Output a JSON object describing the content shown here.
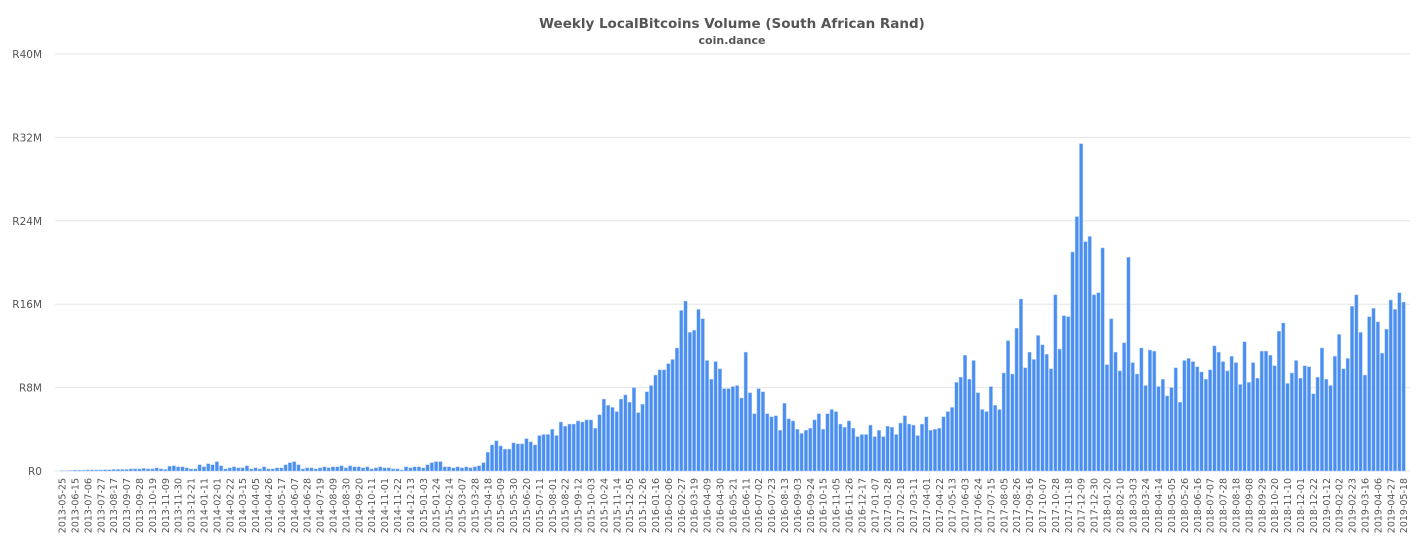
{
  "chart_data": {
    "type": "bar",
    "title": "Weekly LocalBitcoins Volume (South African Rand)",
    "subtitle": "coin.dance",
    "xlabel": "",
    "ylabel": "",
    "ylim": [
      0,
      40000000
    ],
    "yticks": [
      0,
      8000000,
      16000000,
      24000000,
      32000000,
      40000000
    ],
    "ytick_labels": [
      "R0",
      "R8M",
      "R16M",
      "R24M",
      "R32M",
      "R40M"
    ],
    "grid": true,
    "bar_color": "#4a8ff0",
    "value_unit": "millions of ZAR",
    "categories": [
      "2013-05-25",
      "2013-06-01",
      "2013-06-08",
      "2013-06-15",
      "2013-06-22",
      "2013-06-29",
      "2013-07-06",
      "2013-07-13",
      "2013-07-20",
      "2013-07-27",
      "2013-08-03",
      "2013-08-10",
      "2013-08-17",
      "2013-08-24",
      "2013-08-31",
      "2013-09-07",
      "2013-09-14",
      "2013-09-21",
      "2013-09-28",
      "2013-10-05",
      "2013-10-12",
      "2013-10-19",
      "2013-10-26",
      "2013-11-02",
      "2013-11-09",
      "2013-11-16",
      "2013-11-23",
      "2013-11-30",
      "2013-12-07",
      "2013-12-14",
      "2013-12-21",
      "2013-12-28",
      "2014-01-04",
      "2014-01-11",
      "2014-01-18",
      "2014-01-25",
      "2014-02-01",
      "2014-02-08",
      "2014-02-15",
      "2014-02-22",
      "2014-03-01",
      "2014-03-08",
      "2014-03-15",
      "2014-03-22",
      "2014-03-29",
      "2014-04-05",
      "2014-04-12",
      "2014-04-19",
      "2014-04-26",
      "2014-05-03",
      "2014-05-10",
      "2014-05-17",
      "2014-05-24",
      "2014-05-31",
      "2014-06-07",
      "2014-06-14",
      "2014-06-21",
      "2014-06-28",
      "2014-07-05",
      "2014-07-12",
      "2014-07-19",
      "2014-07-26",
      "2014-08-02",
      "2014-08-09",
      "2014-08-16",
      "2014-08-23",
      "2014-08-30",
      "2014-09-06",
      "2014-09-13",
      "2014-09-20",
      "2014-09-27",
      "2014-10-04",
      "2014-10-11",
      "2014-10-18",
      "2014-10-25",
      "2014-11-01",
      "2014-11-08",
      "2014-11-15",
      "2014-11-22",
      "2014-11-29",
      "2014-12-06",
      "2014-12-13",
      "2014-12-20",
      "2014-12-27",
      "2015-01-03",
      "2015-01-10",
      "2015-01-17",
      "2015-01-24",
      "2015-01-31",
      "2015-02-07",
      "2015-02-14",
      "2015-02-21",
      "2015-02-28",
      "2015-03-07",
      "2015-03-14",
      "2015-03-21",
      "2015-03-28",
      "2015-04-04",
      "2015-04-11",
      "2015-04-18",
      "2015-04-25",
      "2015-05-02",
      "2015-05-09",
      "2015-05-16",
      "2015-05-23",
      "2015-05-30",
      "2015-06-06",
      "2015-06-13",
      "2015-06-20",
      "2015-06-27",
      "2015-07-04",
      "2015-07-11",
      "2015-07-18",
      "2015-07-25",
      "2015-08-01",
      "2015-08-08",
      "2015-08-15",
      "2015-08-22",
      "2015-08-29",
      "2015-09-05",
      "2015-09-12",
      "2015-09-19",
      "2015-09-26",
      "2015-10-03",
      "2015-10-10",
      "2015-10-17",
      "2015-10-24",
      "2015-10-31",
      "2015-11-07",
      "2015-11-14",
      "2015-11-21",
      "2015-11-28",
      "2015-12-05",
      "2015-12-12",
      "2015-12-19",
      "2015-12-26",
      "2016-01-02",
      "2016-01-09",
      "2016-01-16",
      "2016-01-23",
      "2016-01-30",
      "2016-02-06",
      "2016-02-13",
      "2016-02-20",
      "2016-02-27",
      "2016-03-05",
      "2016-03-12",
      "2016-03-19",
      "2016-03-26",
      "2016-04-02",
      "2016-04-09",
      "2016-04-16",
      "2016-04-23",
      "2016-04-30",
      "2016-05-07",
      "2016-05-14",
      "2016-05-21",
      "2016-05-28",
      "2016-06-04",
      "2016-06-11",
      "2016-06-18",
      "2016-06-25",
      "2016-07-02",
      "2016-07-09",
      "2016-07-16",
      "2016-07-23",
      "2016-07-30",
      "2016-08-06",
      "2016-08-13",
      "2016-08-20",
      "2016-08-27",
      "2016-09-03",
      "2016-09-10",
      "2016-09-17",
      "2016-09-24",
      "2016-10-01",
      "2016-10-08",
      "2016-10-15",
      "2016-10-22",
      "2016-10-29",
      "2016-11-05",
      "2016-11-12",
      "2016-11-19",
      "2016-11-26",
      "2016-12-03",
      "2016-12-10",
      "2016-12-17",
      "2016-12-24",
      "2016-12-31",
      "2017-01-07",
      "2017-01-14",
      "2017-01-21",
      "2017-01-28",
      "2017-02-04",
      "2017-02-11",
      "2017-02-18",
      "2017-02-25",
      "2017-03-04",
      "2017-03-11",
      "2017-03-18",
      "2017-03-25",
      "2017-04-01",
      "2017-04-08",
      "2017-04-15",
      "2017-04-22",
      "2017-04-29",
      "2017-05-06",
      "2017-05-13",
      "2017-05-20",
      "2017-05-27",
      "2017-06-03",
      "2017-06-10",
      "2017-06-17",
      "2017-06-24",
      "2017-07-01",
      "2017-07-08",
      "2017-07-15",
      "2017-07-22",
      "2017-07-29",
      "2017-08-05",
      "2017-08-12",
      "2017-08-19",
      "2017-08-26",
      "2017-09-02",
      "2017-09-09",
      "2017-09-16",
      "2017-09-23",
      "2017-09-30",
      "2017-10-07",
      "2017-10-14",
      "2017-10-21",
      "2017-10-28",
      "2017-11-04",
      "2017-11-11",
      "2017-11-18",
      "2017-11-25",
      "2017-12-02",
      "2017-12-09",
      "2017-12-16",
      "2017-12-23",
      "2017-12-30",
      "2018-01-06",
      "2018-01-13",
      "2018-01-20",
      "2018-01-27",
      "2018-02-03",
      "2018-02-10",
      "2018-02-17",
      "2018-02-24",
      "2018-03-03",
      "2018-03-10",
      "2018-03-17",
      "2018-03-24",
      "2018-03-31",
      "2018-04-07",
      "2018-04-14",
      "2018-04-21",
      "2018-04-28",
      "2018-05-05",
      "2018-05-12",
      "2018-05-19",
      "2018-05-26",
      "2018-06-02",
      "2018-06-09",
      "2018-06-16",
      "2018-06-23",
      "2018-06-30",
      "2018-07-07",
      "2018-07-14",
      "2018-07-21",
      "2018-07-28",
      "2018-08-04",
      "2018-08-11",
      "2018-08-18",
      "2018-08-25",
      "2018-09-01",
      "2018-09-08",
      "2018-09-15",
      "2018-09-22",
      "2018-09-29",
      "2018-10-06",
      "2018-10-13",
      "2018-10-20",
      "2018-10-27",
      "2018-11-03",
      "2018-11-10",
      "2018-11-17",
      "2018-11-24",
      "2018-12-01",
      "2018-12-08",
      "2018-12-15",
      "2018-12-22",
      "2018-12-29",
      "2019-01-05",
      "2019-01-12",
      "2019-01-19",
      "2019-01-26",
      "2019-02-02",
      "2019-02-09",
      "2019-02-16",
      "2019-02-23",
      "2019-03-02",
      "2019-03-09",
      "2019-03-16",
      "2019-03-23",
      "2019-03-30",
      "2019-04-06",
      "2019-04-13",
      "2019-04-20",
      "2019-04-27",
      "2019-05-04",
      "2019-05-11",
      "2019-05-18"
    ],
    "values": [
      0.03,
      0.03,
      0.05,
      0.08,
      0.08,
      0.08,
      0.1,
      0.1,
      0.1,
      0.1,
      0.12,
      0.12,
      0.15,
      0.15,
      0.15,
      0.15,
      0.2,
      0.2,
      0.2,
      0.25,
      0.2,
      0.2,
      0.3,
      0.2,
      0.15,
      0.45,
      0.5,
      0.4,
      0.4,
      0.3,
      0.2,
      0.2,
      0.6,
      0.4,
      0.7,
      0.6,
      0.9,
      0.5,
      0.2,
      0.3,
      0.4,
      0.3,
      0.3,
      0.5,
      0.2,
      0.3,
      0.2,
      0.4,
      0.2,
      0.2,
      0.3,
      0.3,
      0.6,
      0.8,
      0.9,
      0.6,
      0.2,
      0.3,
      0.3,
      0.2,
      0.3,
      0.4,
      0.3,
      0.4,
      0.4,
      0.5,
      0.3,
      0.5,
      0.4,
      0.4,
      0.3,
      0.4,
      0.2,
      0.3,
      0.4,
      0.3,
      0.3,
      0.2,
      0.2,
      0.1,
      0.4,
      0.3,
      0.4,
      0.4,
      0.3,
      0.6,
      0.8,
      0.9,
      0.9,
      0.4,
      0.4,
      0.3,
      0.4,
      0.3,
      0.4,
      0.3,
      0.4,
      0.5,
      0.8,
      1.8,
      2.5,
      2.9,
      2.4,
      2.1,
      2.1,
      2.7,
      2.6,
      2.6,
      3.1,
      2.8,
      2.5,
      3.4,
      3.5,
      3.5,
      4.0,
      3.4,
      4.7,
      4.3,
      4.5,
      4.5,
      4.8,
      4.7,
      4.9,
      4.9,
      4.1,
      5.4,
      6.9,
      6.3,
      6.1,
      5.7,
      6.9,
      7.3,
      6.6,
      8.0,
      5.6,
      6.4,
      7.6,
      8.2,
      9.2,
      9.7,
      9.7,
      10.3,
      10.7,
      11.8,
      15.4,
      16.3,
      13.3,
      13.5,
      15.5,
      14.6,
      10.6,
      8.8,
      10.5,
      9.8,
      7.9,
      7.9,
      8.1,
      8.2,
      7.0,
      11.4,
      7.5,
      5.5,
      7.9,
      7.6,
      5.5,
      5.2,
      5.3,
      3.9,
      6.5,
      5.0,
      4.8,
      4.0,
      3.6,
      3.9,
      4.1,
      4.9,
      5.5,
      4.0,
      5.5,
      5.9,
      5.7,
      4.5,
      4.2,
      4.8,
      4.1,
      3.3,
      3.5,
      3.5,
      4.4,
      3.3,
      3.9,
      3.3,
      4.3,
      4.2,
      3.5,
      4.6,
      5.3,
      4.5,
      4.4,
      3.4,
      4.5,
      5.2,
      3.9,
      4.0,
      4.1,
      5.2,
      5.7,
      6.1,
      8.5,
      9.0,
      11.1,
      8.8,
      10.6,
      7.5,
      5.9,
      5.7,
      8.1,
      6.3,
      5.9,
      9.4,
      12.5,
      9.3,
      13.7,
      16.5,
      9.9,
      11.4,
      10.7,
      13.0,
      12.1,
      11.2,
      9.8,
      16.9,
      11.7,
      14.9,
      14.8,
      21.0,
      24.4,
      31.4,
      22.0,
      22.5,
      16.9,
      17.1,
      21.4,
      10.2,
      14.6,
      11.4,
      9.6,
      12.3,
      20.5,
      10.4,
      9.3,
      11.8,
      8.2,
      11.6,
      11.5,
      8.1,
      8.8,
      7.2,
      8.0,
      9.9,
      6.6,
      10.6,
      10.8,
      10.5,
      10.0,
      9.5,
      8.8,
      9.7,
      12.0,
      11.4,
      10.5,
      9.6,
      11.0,
      10.4,
      8.3,
      12.4,
      8.5,
      10.4,
      8.9,
      11.5,
      11.5,
      11.1,
      10.1,
      13.4,
      14.2,
      8.4,
      9.4,
      10.6,
      8.9,
      10.1,
      10.0,
      7.4,
      9.0,
      11.8,
      8.8,
      8.2,
      11.0,
      13.1,
      9.8,
      10.8,
      15.8,
      16.9,
      13.3,
      9.2,
      14.8,
      15.6,
      14.3,
      11.3,
      13.6,
      16.4,
      15.5,
      17.1,
      16.2
    ]
  }
}
